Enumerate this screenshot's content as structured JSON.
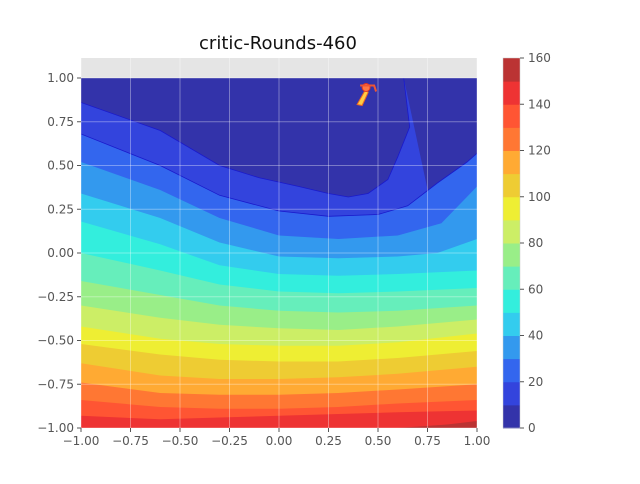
{
  "chart_data": {
    "type": "contour",
    "title": "critic-Rounds-460",
    "xlim": [
      -1.0,
      1.0
    ],
    "ylim": [
      -1.0,
      1.0
    ],
    "x_ticks": [
      "−1.00",
      "−0.75",
      "−0.50",
      "−0.25",
      "0.00",
      "0.25",
      "0.50",
      "0.75",
      "1.00"
    ],
    "y_ticks": [
      "1.00",
      "0.75",
      "0.50",
      "0.25",
      "0.00",
      "−0.25",
      "−0.50",
      "−0.75",
      "−1.00"
    ],
    "grid": true,
    "colorbar": {
      "levels": [
        0,
        10,
        20,
        30,
        40,
        50,
        60,
        70,
        80,
        90,
        100,
        110,
        120,
        130,
        140,
        150,
        160
      ],
      "tick_labels": [
        "0",
        "20",
        "40",
        "60",
        "80",
        "100",
        "120",
        "140",
        "160"
      ],
      "colors": [
        "#3333aa",
        "#3344dd",
        "#3366ee",
        "#3399ee",
        "#33ccee",
        "#33eedd",
        "#66eebb",
        "#99ee88",
        "#ccee66",
        "#eeee33",
        "#eecc33",
        "#ffaa33",
        "#ff7733",
        "#ff5533",
        "#ee3333",
        "#bb3333"
      ]
    },
    "contour_boundaries": [
      {
        "level": 10,
        "points": [
          [
            -1.0,
            0.86
          ],
          [
            -0.6,
            0.7
          ],
          [
            -0.3,
            0.5
          ],
          [
            -0.1,
            0.43
          ],
          [
            0.1,
            0.38
          ],
          [
            0.25,
            0.34
          ],
          [
            0.35,
            0.32
          ],
          [
            0.45,
            0.34
          ],
          [
            0.55,
            0.42
          ],
          [
            0.6,
            0.55
          ],
          [
            0.66,
            0.72
          ],
          [
            0.63,
            1.0
          ]
        ]
      },
      {
        "level": 20,
        "points": [
          [
            -1.0,
            0.68
          ],
          [
            -0.6,
            0.5
          ],
          [
            -0.3,
            0.33
          ],
          [
            0.0,
            0.24
          ],
          [
            0.25,
            0.21
          ],
          [
            0.5,
            0.22
          ],
          [
            0.65,
            0.27
          ],
          [
            0.8,
            0.4
          ],
          [
            0.95,
            0.52
          ],
          [
            1.0,
            0.57
          ]
        ]
      },
      {
        "level": 30,
        "points": [
          [
            -1.0,
            0.52
          ],
          [
            -0.6,
            0.36
          ],
          [
            -0.3,
            0.2
          ],
          [
            0.0,
            0.1
          ],
          [
            0.3,
            0.08
          ],
          [
            0.6,
            0.1
          ],
          [
            0.82,
            0.17
          ],
          [
            1.0,
            0.38
          ]
        ]
      },
      {
        "level": 40,
        "points": [
          [
            -1.0,
            0.34
          ],
          [
            -0.6,
            0.2
          ],
          [
            -0.3,
            0.06
          ],
          [
            0.0,
            -0.02
          ],
          [
            0.3,
            -0.03
          ],
          [
            0.6,
            -0.02
          ],
          [
            0.8,
            0.0
          ],
          [
            1.0,
            0.08
          ]
        ]
      },
      {
        "level": 50,
        "points": [
          [
            -1.0,
            0.18
          ],
          [
            -0.6,
            0.05
          ],
          [
            -0.3,
            -0.07
          ],
          [
            0.0,
            -0.12
          ],
          [
            0.3,
            -0.13
          ],
          [
            0.6,
            -0.12
          ],
          [
            1.0,
            -0.1
          ]
        ]
      },
      {
        "level": 60,
        "points": [
          [
            -1.0,
            0.0
          ],
          [
            -0.6,
            -0.1
          ],
          [
            -0.3,
            -0.18
          ],
          [
            0.0,
            -0.22
          ],
          [
            0.3,
            -0.23
          ],
          [
            0.6,
            -0.22
          ],
          [
            1.0,
            -0.2
          ]
        ]
      },
      {
        "level": 70,
        "points": [
          [
            -1.0,
            -0.16
          ],
          [
            -0.6,
            -0.24
          ],
          [
            -0.3,
            -0.3
          ],
          [
            0.0,
            -0.33
          ],
          [
            0.3,
            -0.34
          ],
          [
            0.6,
            -0.33
          ],
          [
            1.0,
            -0.3
          ]
        ]
      },
      {
        "level": 80,
        "points": [
          [
            -1.0,
            -0.3
          ],
          [
            -0.6,
            -0.37
          ],
          [
            -0.3,
            -0.41
          ],
          [
            0.0,
            -0.43
          ],
          [
            0.3,
            -0.44
          ],
          [
            0.6,
            -0.42
          ],
          [
            1.0,
            -0.38
          ]
        ]
      },
      {
        "level": 90,
        "points": [
          [
            -1.0,
            -0.42
          ],
          [
            -0.6,
            -0.49
          ],
          [
            -0.3,
            -0.52
          ],
          [
            0.0,
            -0.53
          ],
          [
            0.3,
            -0.53
          ],
          [
            0.6,
            -0.51
          ],
          [
            1.0,
            -0.46
          ]
        ]
      },
      {
        "level": 100,
        "points": [
          [
            -1.0,
            -0.52
          ],
          [
            -0.6,
            -0.58
          ],
          [
            -0.3,
            -0.61
          ],
          [
            0.0,
            -0.62
          ],
          [
            0.3,
            -0.62
          ],
          [
            0.6,
            -0.6
          ],
          [
            1.0,
            -0.56
          ]
        ]
      },
      {
        "level": 110,
        "points": [
          [
            -1.0,
            -0.63
          ],
          [
            -0.6,
            -0.7
          ],
          [
            -0.3,
            -0.72
          ],
          [
            0.0,
            -0.72
          ],
          [
            0.3,
            -0.71
          ],
          [
            0.6,
            -0.69
          ],
          [
            1.0,
            -0.65
          ]
        ]
      },
      {
        "level": 120,
        "points": [
          [
            -1.0,
            -0.74
          ],
          [
            -0.6,
            -0.8
          ],
          [
            -0.3,
            -0.81
          ],
          [
            0.0,
            -0.81
          ],
          [
            0.3,
            -0.8
          ],
          [
            0.6,
            -0.78
          ],
          [
            1.0,
            -0.75
          ]
        ]
      },
      {
        "level": 130,
        "points": [
          [
            -1.0,
            -0.84
          ],
          [
            -0.6,
            -0.88
          ],
          [
            -0.3,
            -0.89
          ],
          [
            0.0,
            -0.89
          ],
          [
            0.3,
            -0.88
          ],
          [
            0.6,
            -0.86
          ],
          [
            1.0,
            -0.84
          ]
        ]
      },
      {
        "level": 140,
        "points": [
          [
            -1.0,
            -0.93
          ],
          [
            -0.6,
            -0.95
          ],
          [
            -0.3,
            -0.94
          ],
          [
            0.0,
            -0.93
          ],
          [
            0.3,
            -0.92
          ],
          [
            0.6,
            -0.91
          ],
          [
            1.0,
            -0.9
          ]
        ]
      },
      {
        "level": 150,
        "points": [
          [
            0.6,
            -1.0
          ],
          [
            0.85,
            -0.98
          ],
          [
            1.0,
            -0.96
          ]
        ]
      }
    ],
    "marker": {
      "x": 0.44,
      "y": 0.94
    }
  }
}
